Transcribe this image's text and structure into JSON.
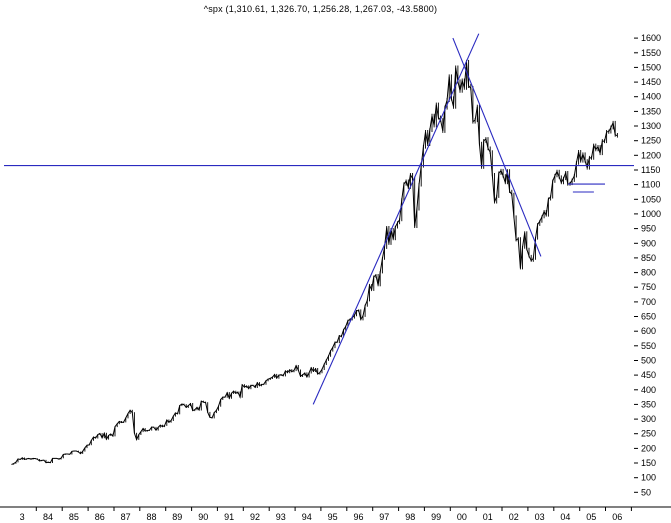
{
  "title": "^spx (1,310.61, 1,326.70, 1,256.28, 1,267.03, -43.5800)",
  "colors": {
    "background": "#ffffff",
    "series": "#000000",
    "trend": "#2a2ac0",
    "axis": "#000000"
  },
  "chart_data": {
    "type": "line",
    "symbol": "^spx",
    "quote": {
      "open": "1,310.61",
      "high": "1,326.70",
      "low": "1,256.28",
      "close": "1,267.03",
      "change": "-43.5800"
    },
    "title": "^spx (1,310.61, 1,326.70, 1,256.28, 1,267.03, -43.5800)",
    "xlabel": "",
    "ylabel": "",
    "grid": false,
    "legend": null,
    "xlim": [
      1982.75,
      2007.1
    ],
    "ylim": [
      0,
      1655
    ],
    "x_start_year": 1983,
    "x_frequency": "monthly",
    "xtick_labels": [
      "3",
      "84",
      "85",
      "86",
      "87",
      "88",
      "89",
      "90",
      "91",
      "92",
      "93",
      "94",
      "95",
      "96",
      "97",
      "98",
      "99",
      "00",
      "01",
      "02",
      "03",
      "04",
      "05",
      "06"
    ],
    "ytick_values": [
      1600,
      1550,
      1500,
      1450,
      1400,
      1350,
      1300,
      1250,
      1200,
      1150,
      1100,
      1050,
      1000,
      950,
      900,
      850,
      800,
      750,
      700,
      650,
      600,
      550,
      500,
      450,
      400,
      350,
      300,
      250,
      200,
      150,
      100,
      50
    ],
    "monthly_closes": [
      145,
      148,
      153,
      164,
      162,
      168,
      162,
      164,
      166,
      163,
      166,
      165,
      163,
      157,
      159,
      160,
      151,
      153,
      151,
      166,
      166,
      166,
      163,
      167,
      179,
      181,
      181,
      180,
      190,
      191,
      191,
      188,
      182,
      190,
      202,
      211,
      212,
      227,
      239,
      235,
      247,
      251,
      236,
      252,
      231,
      244,
      249,
      242,
      274,
      284,
      292,
      288,
      290,
      304,
      319,
      330,
      322,
      252,
      230,
      247,
      257,
      268,
      259,
      261,
      262,
      273,
      272,
      262,
      272,
      279,
      274,
      278,
      297,
      289,
      295,
      310,
      321,
      318,
      346,
      351,
      349,
      340,
      346,
      353,
      329,
      332,
      340,
      331,
      361,
      358,
      356,
      323,
      306,
      304,
      322,
      330,
      344,
      367,
      375,
      375,
      390,
      371,
      388,
      395,
      388,
      392,
      375,
      417,
      409,
      413,
      404,
      415,
      415,
      408,
      424,
      414,
      418,
      419,
      431,
      436,
      439,
      443,
      452,
      440,
      450,
      451,
      448,
      464,
      459,
      468,
      462,
      466,
      482,
      467,
      446,
      451,
      457,
      444,
      458,
      475,
      463,
      472,
      454,
      459,
      470,
      487,
      501,
      515,
      533,
      545,
      562,
      562,
      584,
      582,
      605,
      616,
      636,
      640,
      646,
      654,
      669,
      671,
      640,
      652,
      687,
      705,
      757,
      741,
      786,
      791,
      757,
      801,
      848,
      885,
      954,
      899,
      947,
      915,
      955,
      970,
      980,
      1049,
      1102,
      1112,
      1091,
      1134,
      1121,
      957,
      1017,
      1099,
      1164,
      1229,
      1280,
      1238,
      1286,
      1335,
      1302,
      1373,
      1329,
      1320,
      1283,
      1363,
      1389,
      1469,
      1394,
      1366,
      1499,
      1452,
      1421,
      1455,
      1431,
      1518,
      1437,
      1429,
      1315,
      1320,
      1366,
      1240,
      1160,
      1249,
      1256,
      1224,
      1211,
      1134,
      1041,
      1060,
      1139,
      1148,
      1130,
      1107,
      1147,
      1077,
      1067,
      990,
      911,
      916,
      815,
      886,
      936,
      880,
      856,
      841,
      848,
      917,
      964,
      975,
      990,
      1008,
      996,
      1051,
      1058,
      1112,
      1131,
      1145,
      1126,
      1107,
      1121,
      1141,
      1102,
      1104,
      1115,
      1130,
      1174,
      1212,
      1181,
      1204,
      1181,
      1157,
      1192,
      1191,
      1234,
      1220,
      1229,
      1207,
      1249,
      1248,
      1280,
      1281,
      1295,
      1311,
      1270,
      1267
    ],
    "trendlines": [
      {
        "name": "horizontal-resistance",
        "x1": 1982.75,
        "x2": 2007.1,
        "v1": 1165,
        "v2": 1165
      },
      {
        "name": "ascending-support",
        "x1": 1994.7,
        "x2": 2001.1,
        "v1": 350,
        "v2": 1615
      },
      {
        "name": "descending-resistance",
        "x1": 2000.1,
        "x2": 2003.5,
        "v1": 1600,
        "v2": 855
      },
      {
        "name": "short-level-upper",
        "x1": 2004.55,
        "x2": 2005.98,
        "v1": 1102,
        "v2": 1102
      },
      {
        "name": "short-level-lower",
        "x1": 2004.74,
        "x2": 2005.55,
        "v1": 1075,
        "v2": 1075
      }
    ]
  }
}
